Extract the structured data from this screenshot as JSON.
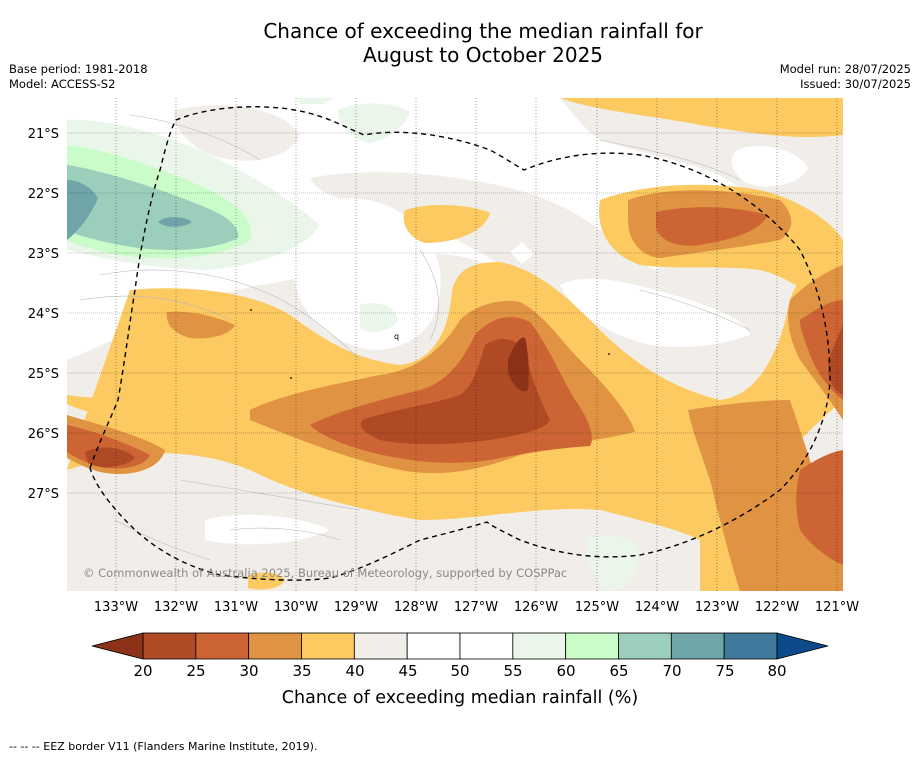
{
  "title_line1": "Chance of exceeding the median rainfall for",
  "title_line2": "August to October 2025",
  "meta_left": [
    "Base period: 1981-2018",
    "Model: ACCESS-S2"
  ],
  "meta_right": [
    "Model run: 28/07/2025",
    "Issued: 30/07/2025"
  ],
  "copyright": "© Commonwealth of Australia 2025, Bureau of Meteorology, supported by COSPPac",
  "lat_labels": [
    "21°S",
    "22°S",
    "23°S",
    "24°S",
    "25°S",
    "26°S",
    "27°S"
  ],
  "lon_labels": [
    "133°W",
    "132°W",
    "131°W",
    "130°W",
    "129°W",
    "128°W",
    "127°W",
    "126°W",
    "125°W",
    "124°W",
    "123°W",
    "122°W",
    "121°W"
  ],
  "colorbar": {
    "title": "Chance of exceeding median rainfall (%)",
    "ticks": [
      "20",
      "25",
      "30",
      "35",
      "40",
      "45",
      "50",
      "55",
      "60",
      "65",
      "70",
      "75",
      "80"
    ],
    "colors": [
      "#b04a25",
      "#cc6433",
      "#e09443",
      "#fcca60",
      "#f1eeea",
      "#ffffff",
      "#ffffff",
      "#eaf6ea",
      "#c9fcc9",
      "#9ccfbb",
      "#6fa4a8",
      "#3f7a9c"
    ],
    "under_color": "#8c3219",
    "over_color": "#0d4a8a"
  },
  "footer": "--  --  -- EEZ border V11 (Flanders Marine Institute, 2019)."
}
